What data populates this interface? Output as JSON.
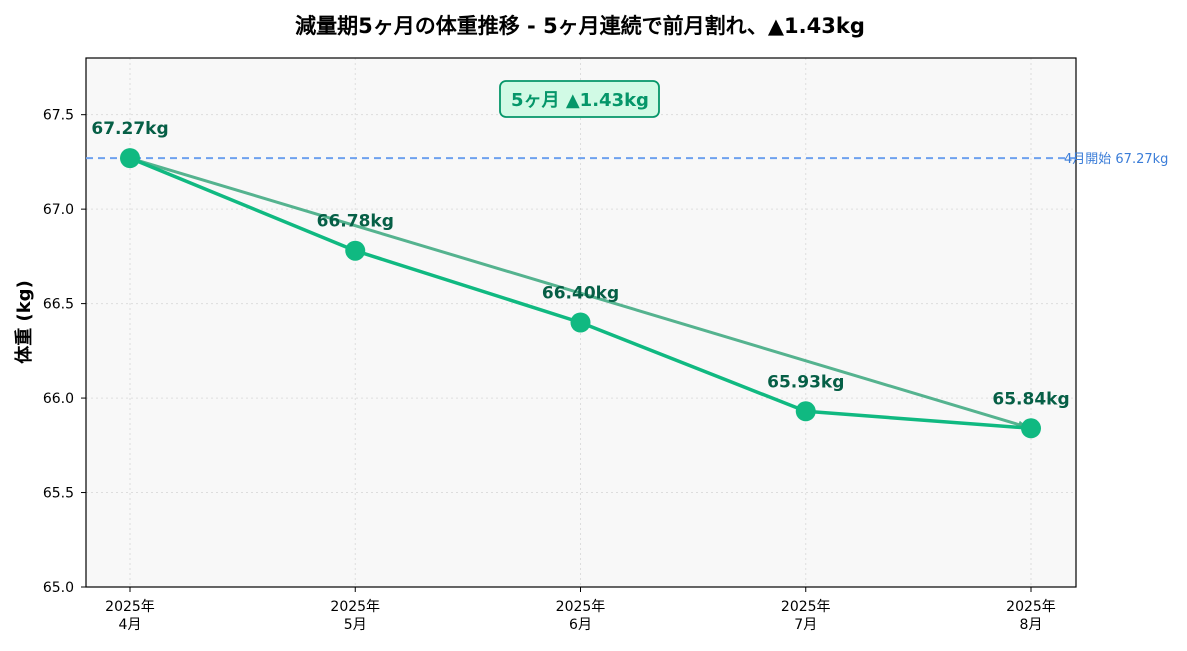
{
  "chart_data": {
    "type": "line",
    "title": "減量期5ヶ月の体重推移 - 5ヶ月連続で前月割れ、▲1.43kg",
    "xlabel": "",
    "ylabel": "体重 (kg)",
    "categories": [
      "2025年\n4月",
      "2025年\n5月",
      "2025年\n6月",
      "2025年\n7月",
      "2025年\n8月"
    ],
    "values": [
      67.27,
      66.78,
      66.4,
      65.93,
      65.84
    ],
    "data_labels": [
      "67.27kg",
      "66.78kg",
      "66.40kg",
      "65.93kg",
      "65.84kg"
    ],
    "ylim": [
      65.0,
      67.8
    ],
    "yticks": [
      65.0,
      65.5,
      66.0,
      66.5,
      67.0,
      67.5
    ],
    "ytick_labels": [
      "65.0",
      "65.5",
      "66.0",
      "66.5",
      "67.0",
      "67.5"
    ],
    "grid": true,
    "reference_line": {
      "value": 67.27,
      "label": "4月開始 67.27kg"
    },
    "trend_arrow": {
      "from_index": 0,
      "to_index": 4
    },
    "annotation_box": {
      "text": "5ヶ月 ▲1.43kg"
    }
  },
  "colors": {
    "line": "#10b981",
    "marker": "#10b981",
    "data_label": "#065f46",
    "arrow": "#4caf89",
    "reference": "#6ea1ee",
    "reference_label": "#3b7dd8",
    "annotation_text": "#059669",
    "annotation_border": "#059669",
    "annotation_fill": "#d1fae5",
    "plot_bg": "#f8f8f8",
    "grid": "#dddddd",
    "axis": "#000000"
  }
}
